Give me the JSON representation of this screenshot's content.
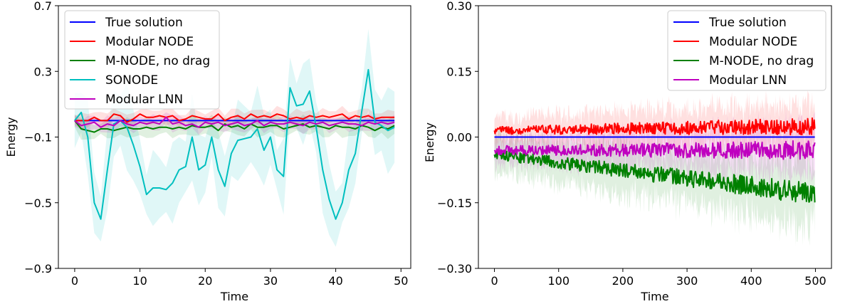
{
  "chart_data": [
    {
      "type": "line",
      "xlabel": "Time",
      "ylabel": "Energy",
      "xlim": [
        -2.5,
        51.5
      ],
      "ylim": [
        -0.9,
        0.7
      ],
      "xticks": [
        0,
        10,
        20,
        30,
        40,
        50
      ],
      "yticks": [
        -0.9,
        -0.5,
        -0.1,
        0.3,
        0.7
      ],
      "ytick_labels": [
        "−0.9",
        "−0.5",
        "−0.1",
        "0.3",
        "0.7"
      ],
      "legend_position": "upper-left",
      "legend": [
        "True solution",
        "Modular NODE",
        "M-NODE, no drag",
        "SONODE",
        "Modular LNN"
      ],
      "x_range": [
        0,
        49
      ],
      "series": [
        {
          "name": "True solution",
          "color": "#0000ff",
          "values": [
            0,
            0,
            0,
            0,
            0,
            0,
            0,
            0,
            0,
            0,
            0,
            0,
            0,
            0,
            0,
            0,
            0,
            0,
            0,
            0,
            0,
            0,
            0,
            0,
            0,
            0,
            0,
            0,
            0,
            0,
            0,
            0,
            0,
            0,
            0,
            0,
            0,
            0,
            0,
            0,
            0,
            0,
            0,
            0,
            0,
            0,
            0,
            0,
            0,
            0
          ],
          "band": 0
        },
        {
          "name": "Modular NODE",
          "color": "#ff0000",
          "values": [
            0,
            0,
            0,
            0.02,
            0,
            0,
            0.04,
            0.03,
            -0.01,
            0.01,
            0.04,
            0.02,
            0.02,
            0.03,
            0.02,
            0.03,
            0,
            0.01,
            0.03,
            0.02,
            0.01,
            0.01,
            0.04,
            0,
            0.02,
            0.03,
            0.01,
            0.04,
            0.02,
            0.03,
            0.02,
            0.04,
            0.03,
            0.01,
            0.02,
            0.01,
            0.03,
            0.02,
            0.03,
            0.02,
            0.03,
            0.04,
            0.01,
            0.03,
            0.02,
            0.03,
            0.01,
            0.02,
            0.02,
            0.02
          ],
          "band": 0.04
        },
        {
          "name": "M-NODE, no drag",
          "color": "#008000",
          "values": [
            0,
            -0.05,
            -0.06,
            -0.07,
            -0.05,
            -0.05,
            -0.06,
            -0.05,
            -0.04,
            -0.05,
            -0.05,
            -0.04,
            -0.05,
            -0.04,
            -0.04,
            -0.05,
            -0.04,
            -0.05,
            -0.03,
            -0.04,
            -0.04,
            -0.03,
            -0.06,
            -0.02,
            -0.04,
            -0.03,
            -0.05,
            -0.02,
            -0.04,
            -0.04,
            -0.03,
            -0.03,
            -0.05,
            -0.04,
            -0.03,
            -0.02,
            -0.04,
            -0.03,
            -0.04,
            -0.05,
            -0.03,
            -0.04,
            -0.04,
            -0.05,
            -0.03,
            -0.04,
            -0.06,
            -0.04,
            -0.05,
            -0.03
          ],
          "band": 0.05
        },
        {
          "name": "SONODE",
          "color": "#00bfbf",
          "values": [
            0,
            0.05,
            -0.1,
            -0.5,
            -0.6,
            -0.3,
            -0.02,
            0,
            -0.04,
            -0.15,
            -0.28,
            -0.45,
            -0.41,
            -0.41,
            -0.42,
            -0.38,
            -0.3,
            -0.28,
            -0.1,
            -0.3,
            -0.27,
            -0.1,
            -0.3,
            -0.4,
            -0.2,
            -0.12,
            -0.11,
            -0.1,
            -0.05,
            -0.18,
            -0.1,
            -0.3,
            -0.34,
            0.2,
            0.09,
            0.1,
            0.18,
            -0.04,
            -0.3,
            -0.48,
            -0.6,
            -0.5,
            -0.3,
            -0.2,
            0.06,
            0.31,
            -0.01,
            -0.03,
            -0.06,
            -0.04
          ],
          "band": 0.2
        },
        {
          "name": "Modular LNN",
          "color": "#bf00bf",
          "values": [
            0,
            -0.03,
            -0.02,
            -0.01,
            -0.04,
            -0.02,
            -0.03,
            0,
            -0.02,
            -0.03,
            -0.01,
            -0.02,
            -0.01,
            -0.02,
            0.02,
            -0.02,
            -0.01,
            -0.03,
            -0.02,
            -0.04,
            -0.01,
            -0.02,
            -0.01,
            -0.03,
            -0.02,
            -0.01,
            -0.03,
            -0.02,
            0,
            -0.03,
            -0.01,
            -0.02,
            -0.02,
            -0.01,
            -0.02,
            -0.03,
            -0.01,
            -0.02,
            -0.01,
            -0.03,
            -0.02,
            -0.01,
            -0.02,
            -0.02,
            -0.03,
            -0.01,
            -0.02,
            -0.01,
            -0.02,
            -0.01
          ],
          "band": 0.04
        }
      ]
    },
    {
      "type": "line",
      "xlabel": "Time",
      "ylabel": "Energy",
      "xlim": [
        -25,
        525
      ],
      "ylim": [
        -0.3,
        0.3
      ],
      "xticks": [
        0,
        100,
        200,
        300,
        400,
        500
      ],
      "yticks": [
        -0.3,
        -0.15,
        0,
        0.15,
        0.3
      ],
      "ytick_labels": [
        "−0.30",
        "−0.15",
        "0.00",
        "0.15",
        "0.30"
      ],
      "legend_position": "upper-right",
      "legend": [
        "True solution",
        "Modular NODE",
        "M-NODE, no drag",
        "Modular LNN"
      ],
      "x_range": [
        0,
        499
      ],
      "series": [
        {
          "name": "True solution",
          "color": "#0000ff",
          "mean": [
            0,
            0
          ],
          "amp": 0,
          "band": 0
        },
        {
          "name": "Modular NODE",
          "color": "#ff0000",
          "mean": [
            0.015,
            0.025
          ],
          "amp": 0.014,
          "band": 0.045
        },
        {
          "name": "M-NODE, no drag",
          "color": "#008000",
          "mean": [
            -0.04,
            -0.13
          ],
          "amp": 0.018,
          "band": 0.06
        },
        {
          "name": "Modular LNN",
          "color": "#bf00bf",
          "mean": [
            -0.03,
            -0.03
          ],
          "amp": 0.016,
          "band": 0.045
        }
      ]
    }
  ]
}
